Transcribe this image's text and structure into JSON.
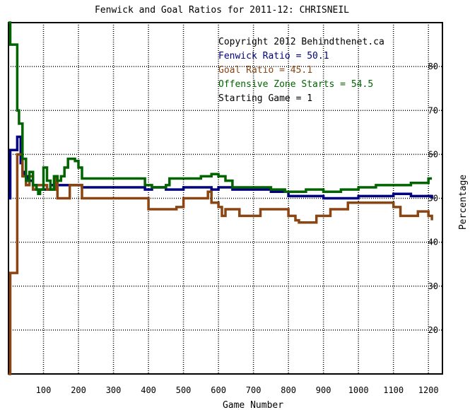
{
  "chart_data": {
    "type": "line",
    "title": "Fenwick and Goal Ratios for 2011-12: CHRISNEIL",
    "xlabel": "Game Number",
    "ylabel": "Percentage",
    "xlim": [
      0,
      1240
    ],
    "ylim": [
      10,
      90
    ],
    "x_ticks": [
      100,
      200,
      300,
      400,
      500,
      600,
      700,
      800,
      900,
      1000,
      1100,
      1200
    ],
    "y_ticks": [
      20,
      30,
      40,
      50,
      60,
      70,
      80
    ],
    "y_axis_side": "right",
    "grid": true,
    "annotations": [
      {
        "text": "Copyright 2012 Behindthenet.ca",
        "color": "#000000"
      },
      {
        "text": "Fenwick Ratio = 50.1",
        "color": "#000080"
      },
      {
        "text": "Goal Ratio = 45.1",
        "color": "#8b4513"
      },
      {
        "text": "Offensive Zone Starts = 54.5",
        "color": "#006400"
      },
      {
        "text": "Starting Game = 1",
        "color": "#000000"
      }
    ],
    "series": [
      {
        "color": "#000080",
        "points": [
          [
            0,
            50
          ],
          [
            5,
            61
          ],
          [
            20,
            61
          ],
          [
            25,
            64
          ],
          [
            30,
            64
          ],
          [
            35,
            58
          ],
          [
            40,
            56
          ],
          [
            45,
            55
          ],
          [
            55,
            54
          ],
          [
            70,
            53
          ],
          [
            80,
            52
          ],
          [
            90,
            52
          ],
          [
            100,
            52
          ],
          [
            110,
            52
          ],
          [
            120,
            53
          ],
          [
            150,
            53
          ],
          [
            200,
            53
          ],
          [
            210,
            52.5
          ],
          [
            300,
            52.5
          ],
          [
            380,
            52.5
          ],
          [
            390,
            52
          ],
          [
            400,
            52
          ],
          [
            410,
            52.5
          ],
          [
            450,
            52
          ],
          [
            500,
            52.5
          ],
          [
            550,
            52.5
          ],
          [
            580,
            52
          ],
          [
            600,
            52.5
          ],
          [
            640,
            52
          ],
          [
            700,
            52
          ],
          [
            750,
            51.5
          ],
          [
            800,
            50.5
          ],
          [
            850,
            50.5
          ],
          [
            900,
            50
          ],
          [
            950,
            50
          ],
          [
            1000,
            50.5
          ],
          [
            1050,
            50.5
          ],
          [
            1100,
            51
          ],
          [
            1150,
            50.5
          ],
          [
            1210,
            50
          ]
        ]
      },
      {
        "color": "#8b4513",
        "points": [
          [
            0,
            10
          ],
          [
            5,
            33
          ],
          [
            20,
            33
          ],
          [
            25,
            60
          ],
          [
            30,
            60
          ],
          [
            35,
            60
          ],
          [
            40,
            55
          ],
          [
            50,
            53
          ],
          [
            60,
            55
          ],
          [
            70,
            52
          ],
          [
            80,
            53
          ],
          [
            90,
            53
          ],
          [
            100,
            53
          ],
          [
            110,
            52
          ],
          [
            130,
            52
          ],
          [
            135,
            55
          ],
          [
            140,
            50
          ],
          [
            170,
            50
          ],
          [
            175,
            53
          ],
          [
            200,
            53
          ],
          [
            210,
            50
          ],
          [
            300,
            50
          ],
          [
            390,
            50
          ],
          [
            400,
            47.5
          ],
          [
            450,
            47.5
          ],
          [
            480,
            48
          ],
          [
            500,
            50
          ],
          [
            540,
            50
          ],
          [
            560,
            50
          ],
          [
            570,
            51.5
          ],
          [
            580,
            49
          ],
          [
            600,
            48
          ],
          [
            610,
            46
          ],
          [
            620,
            47.5
          ],
          [
            650,
            47.5
          ],
          [
            660,
            46
          ],
          [
            700,
            46
          ],
          [
            720,
            47.5
          ],
          [
            790,
            47.5
          ],
          [
            800,
            46
          ],
          [
            820,
            45
          ],
          [
            830,
            44.5
          ],
          [
            870,
            44.5
          ],
          [
            880,
            46
          ],
          [
            910,
            46
          ],
          [
            920,
            47.5
          ],
          [
            960,
            47.5
          ],
          [
            970,
            49
          ],
          [
            1080,
            49
          ],
          [
            1100,
            48
          ],
          [
            1120,
            46
          ],
          [
            1160,
            46
          ],
          [
            1170,
            47
          ],
          [
            1190,
            47
          ],
          [
            1200,
            46
          ],
          [
            1210,
            45
          ]
        ]
      },
      {
        "color": "#006400",
        "points": [
          [
            0,
            90
          ],
          [
            5,
            85
          ],
          [
            20,
            85
          ],
          [
            25,
            70
          ],
          [
            30,
            67
          ],
          [
            35,
            67
          ],
          [
            40,
            59
          ],
          [
            50,
            54
          ],
          [
            60,
            56
          ],
          [
            70,
            53
          ],
          [
            80,
            52
          ],
          [
            85,
            51
          ],
          [
            90,
            52
          ],
          [
            100,
            57
          ],
          [
            110,
            54
          ],
          [
            120,
            52
          ],
          [
            130,
            55
          ],
          [
            140,
            54
          ],
          [
            150,
            55
          ],
          [
            160,
            57
          ],
          [
            170,
            59
          ],
          [
            190,
            58.5
          ],
          [
            200,
            57
          ],
          [
            210,
            54.5
          ],
          [
            300,
            54.5
          ],
          [
            380,
            54.5
          ],
          [
            390,
            53
          ],
          [
            400,
            53
          ],
          [
            410,
            52.5
          ],
          [
            450,
            53
          ],
          [
            460,
            54.5
          ],
          [
            500,
            54.5
          ],
          [
            550,
            55
          ],
          [
            580,
            55.5
          ],
          [
            600,
            55
          ],
          [
            620,
            54
          ],
          [
            640,
            52.5
          ],
          [
            700,
            52.5
          ],
          [
            750,
            52
          ],
          [
            790,
            51.5
          ],
          [
            800,
            51.5
          ],
          [
            850,
            52
          ],
          [
            900,
            51.5
          ],
          [
            950,
            52
          ],
          [
            1000,
            52.5
          ],
          [
            1050,
            53
          ],
          [
            1100,
            53
          ],
          [
            1150,
            53.5
          ],
          [
            1200,
            54.5
          ],
          [
            1210,
            54.5
          ]
        ]
      }
    ]
  }
}
